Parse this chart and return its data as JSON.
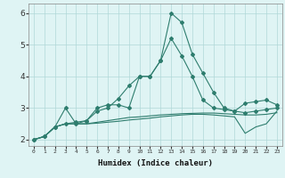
{
  "xlabel": "Humidex (Indice chaleur)",
  "hours": [
    0,
    1,
    2,
    3,
    4,
    5,
    6,
    7,
    8,
    9,
    10,
    11,
    12,
    13,
    14,
    15,
    16,
    17,
    18,
    19,
    20,
    21,
    22,
    23
  ],
  "line1": [
    2.0,
    2.1,
    2.4,
    3.0,
    2.5,
    2.6,
    3.0,
    3.1,
    3.1,
    3.0,
    4.0,
    4.0,
    4.5,
    6.0,
    5.7,
    4.7,
    4.1,
    3.5,
    3.0,
    2.9,
    2.85,
    2.9,
    2.95,
    3.0
  ],
  "line2": [
    2.0,
    2.1,
    2.4,
    2.5,
    2.55,
    2.6,
    2.9,
    3.0,
    3.3,
    3.7,
    4.0,
    4.0,
    4.5,
    5.2,
    4.65,
    4.0,
    3.25,
    3.0,
    2.95,
    2.9,
    3.15,
    3.2,
    3.25,
    3.1
  ],
  "line3": [
    2.0,
    2.1,
    2.4,
    2.5,
    2.5,
    2.5,
    2.55,
    2.6,
    2.65,
    2.7,
    2.72,
    2.75,
    2.78,
    2.8,
    2.82,
    2.83,
    2.84,
    2.84,
    2.82,
    2.8,
    2.78,
    2.78,
    2.8,
    2.85
  ],
  "line4": [
    2.0,
    2.1,
    2.4,
    2.5,
    2.5,
    2.5,
    2.52,
    2.55,
    2.58,
    2.62,
    2.65,
    2.68,
    2.72,
    2.75,
    2.78,
    2.8,
    2.8,
    2.78,
    2.75,
    2.72,
    2.2,
    2.4,
    2.5,
    2.9
  ],
  "bg_color": "#dff4f4",
  "grid_color": "#b0d8d8",
  "line_color": "#2e7d6e",
  "ylim": [
    1.8,
    6.3
  ],
  "yticks": [
    2,
    3,
    4,
    5,
    6
  ],
  "xlim": [
    -0.5,
    23.5
  ]
}
